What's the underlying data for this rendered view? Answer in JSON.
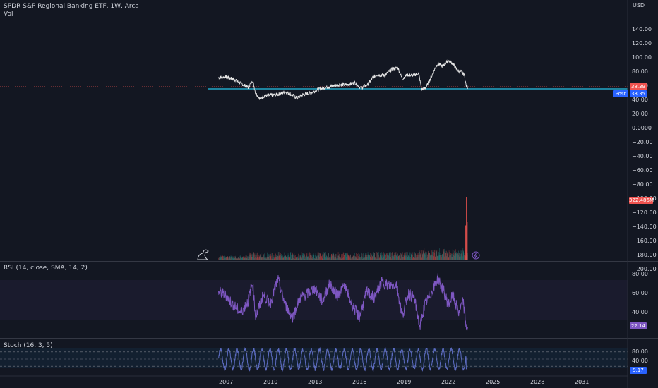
{
  "header": {
    "symbol_line": "SPDR S&P Regional Banking ETF, 1W, Arca",
    "vol_label": "Vol",
    "rsi_label": "RSI (14, close, SMA, 14, 2)",
    "stoch_label": "Stoch (16, 3, 5)"
  },
  "axis": {
    "currency": "USD",
    "price_ticks": [
      "140.00",
      "120.00",
      "100.00",
      "80.00",
      "60.00",
      "40.00",
      "20.00",
      "0.0000",
      "−20.00",
      "−40.00",
      "−60.00",
      "−80.00",
      "−100.00",
      "−120.00",
      "−140.00",
      "−160.00",
      "−180.00",
      "−200.00"
    ],
    "rsi_ticks": [
      "80.00",
      "60.00",
      "40.00"
    ],
    "stoch_ticks": [
      "80.00",
      "40.00"
    ],
    "x_ticks": [
      "2007",
      "2010",
      "2013",
      "2016",
      "2019",
      "2022",
      "2025",
      "2028",
      "2031"
    ]
  },
  "tags": {
    "last_price": "38.39",
    "post_label": "Post",
    "post_price": "38.35",
    "vol_value": "322.486M",
    "rsi_value": "22.14",
    "stoch_value": "9.17",
    "colors": {
      "last": "#ef5350",
      "post": "#2962ff",
      "vol": "#ef5350",
      "rsi": "#7e57c2",
      "stoch": "#2962ff"
    }
  },
  "chart_data": [
    {
      "type": "line",
      "name": "price",
      "x_range": [
        2006.5,
        2023.3
      ],
      "ylim": [
        -200,
        140
      ],
      "horizontal_line": 36,
      "points": [
        [
          2006.5,
          52
        ],
        [
          2007.0,
          53
        ],
        [
          2007.5,
          50
        ],
        [
          2008.0,
          44
        ],
        [
          2008.5,
          38
        ],
        [
          2008.8,
          48
        ],
        [
          2009.0,
          30
        ],
        [
          2009.3,
          22
        ],
        [
          2009.6,
          26
        ],
        [
          2010.0,
          27
        ],
        [
          2010.5,
          28
        ],
        [
          2011.0,
          32
        ],
        [
          2011.5,
          27
        ],
        [
          2011.8,
          23
        ],
        [
          2012.2,
          28
        ],
        [
          2012.7,
          30
        ],
        [
          2013.2,
          35
        ],
        [
          2013.7,
          38
        ],
        [
          2014.2,
          40
        ],
        [
          2014.7,
          42
        ],
        [
          2015.2,
          42
        ],
        [
          2015.7,
          45
        ],
        [
          2016.1,
          37
        ],
        [
          2016.6,
          43
        ],
        [
          2016.9,
          52
        ],
        [
          2017.2,
          56
        ],
        [
          2017.7,
          55
        ],
        [
          2018.2,
          64
        ],
        [
          2018.6,
          66
        ],
        [
          2018.9,
          50
        ],
        [
          2019.2,
          56
        ],
        [
          2019.6,
          55
        ],
        [
          2020.0,
          58
        ],
        [
          2020.2,
          35
        ],
        [
          2020.5,
          38
        ],
        [
          2020.9,
          55
        ],
        [
          2021.1,
          65
        ],
        [
          2021.3,
          72
        ],
        [
          2021.6,
          68
        ],
        [
          2022.0,
          76
        ],
        [
          2022.3,
          72
        ],
        [
          2022.6,
          62
        ],
        [
          2022.9,
          60
        ],
        [
          2023.1,
          55
        ],
        [
          2023.2,
          40
        ],
        [
          2023.3,
          38
        ]
      ]
    },
    {
      "type": "bar",
      "name": "volume",
      "x_range": [
        2006.5,
        2023.3
      ],
      "spike_x": [
        2023.15,
        2023.2,
        2023.25
      ],
      "spike_scale": [
        0.55,
        1.0,
        0.6
      ]
    },
    {
      "type": "line",
      "name": "rsi",
      "x_range": [
        2006.5,
        2023.3
      ],
      "ylim": [
        20,
        90
      ],
      "bands": [
        70,
        50,
        30
      ],
      "points": [
        [
          2006.5,
          62
        ],
        [
          2007.0,
          58
        ],
        [
          2007.5,
          48
        ],
        [
          2008.0,
          40
        ],
        [
          2008.5,
          52
        ],
        [
          2008.8,
          72
        ],
        [
          2009.0,
          35
        ],
        [
          2009.5,
          58
        ],
        [
          2010.0,
          50
        ],
        [
          2010.5,
          75
        ],
        [
          2011.0,
          48
        ],
        [
          2011.5,
          35
        ],
        [
          2012.0,
          55
        ],
        [
          2012.5,
          60
        ],
        [
          2013.0,
          65
        ],
        [
          2013.5,
          52
        ],
        [
          2014.0,
          70
        ],
        [
          2014.5,
          58
        ],
        [
          2015.0,
          68
        ],
        [
          2015.5,
          48
        ],
        [
          2016.0,
          35
        ],
        [
          2016.5,
          62
        ],
        [
          2017.0,
          55
        ],
        [
          2017.5,
          72
        ],
        [
          2018.0,
          68
        ],
        [
          2018.5,
          70
        ],
        [
          2018.9,
          36
        ],
        [
          2019.3,
          60
        ],
        [
          2019.7,
          55
        ],
        [
          2020.1,
          25
        ],
        [
          2020.4,
          48
        ],
        [
          2020.9,
          62
        ],
        [
          2021.3,
          76
        ],
        [
          2021.7,
          62
        ],
        [
          2022.0,
          48
        ],
        [
          2022.3,
          58
        ],
        [
          2022.7,
          40
        ],
        [
          2023.0,
          52
        ],
        [
          2023.2,
          26
        ],
        [
          2023.3,
          22
        ]
      ]
    },
    {
      "type": "line",
      "name": "stochastic",
      "x_range": [
        2006.5,
        2023.3
      ],
      "ylim": [
        0,
        100
      ],
      "bands": [
        80,
        50,
        20
      ],
      "cycles_per_year": 1.8,
      "last": 9.17
    }
  ]
}
